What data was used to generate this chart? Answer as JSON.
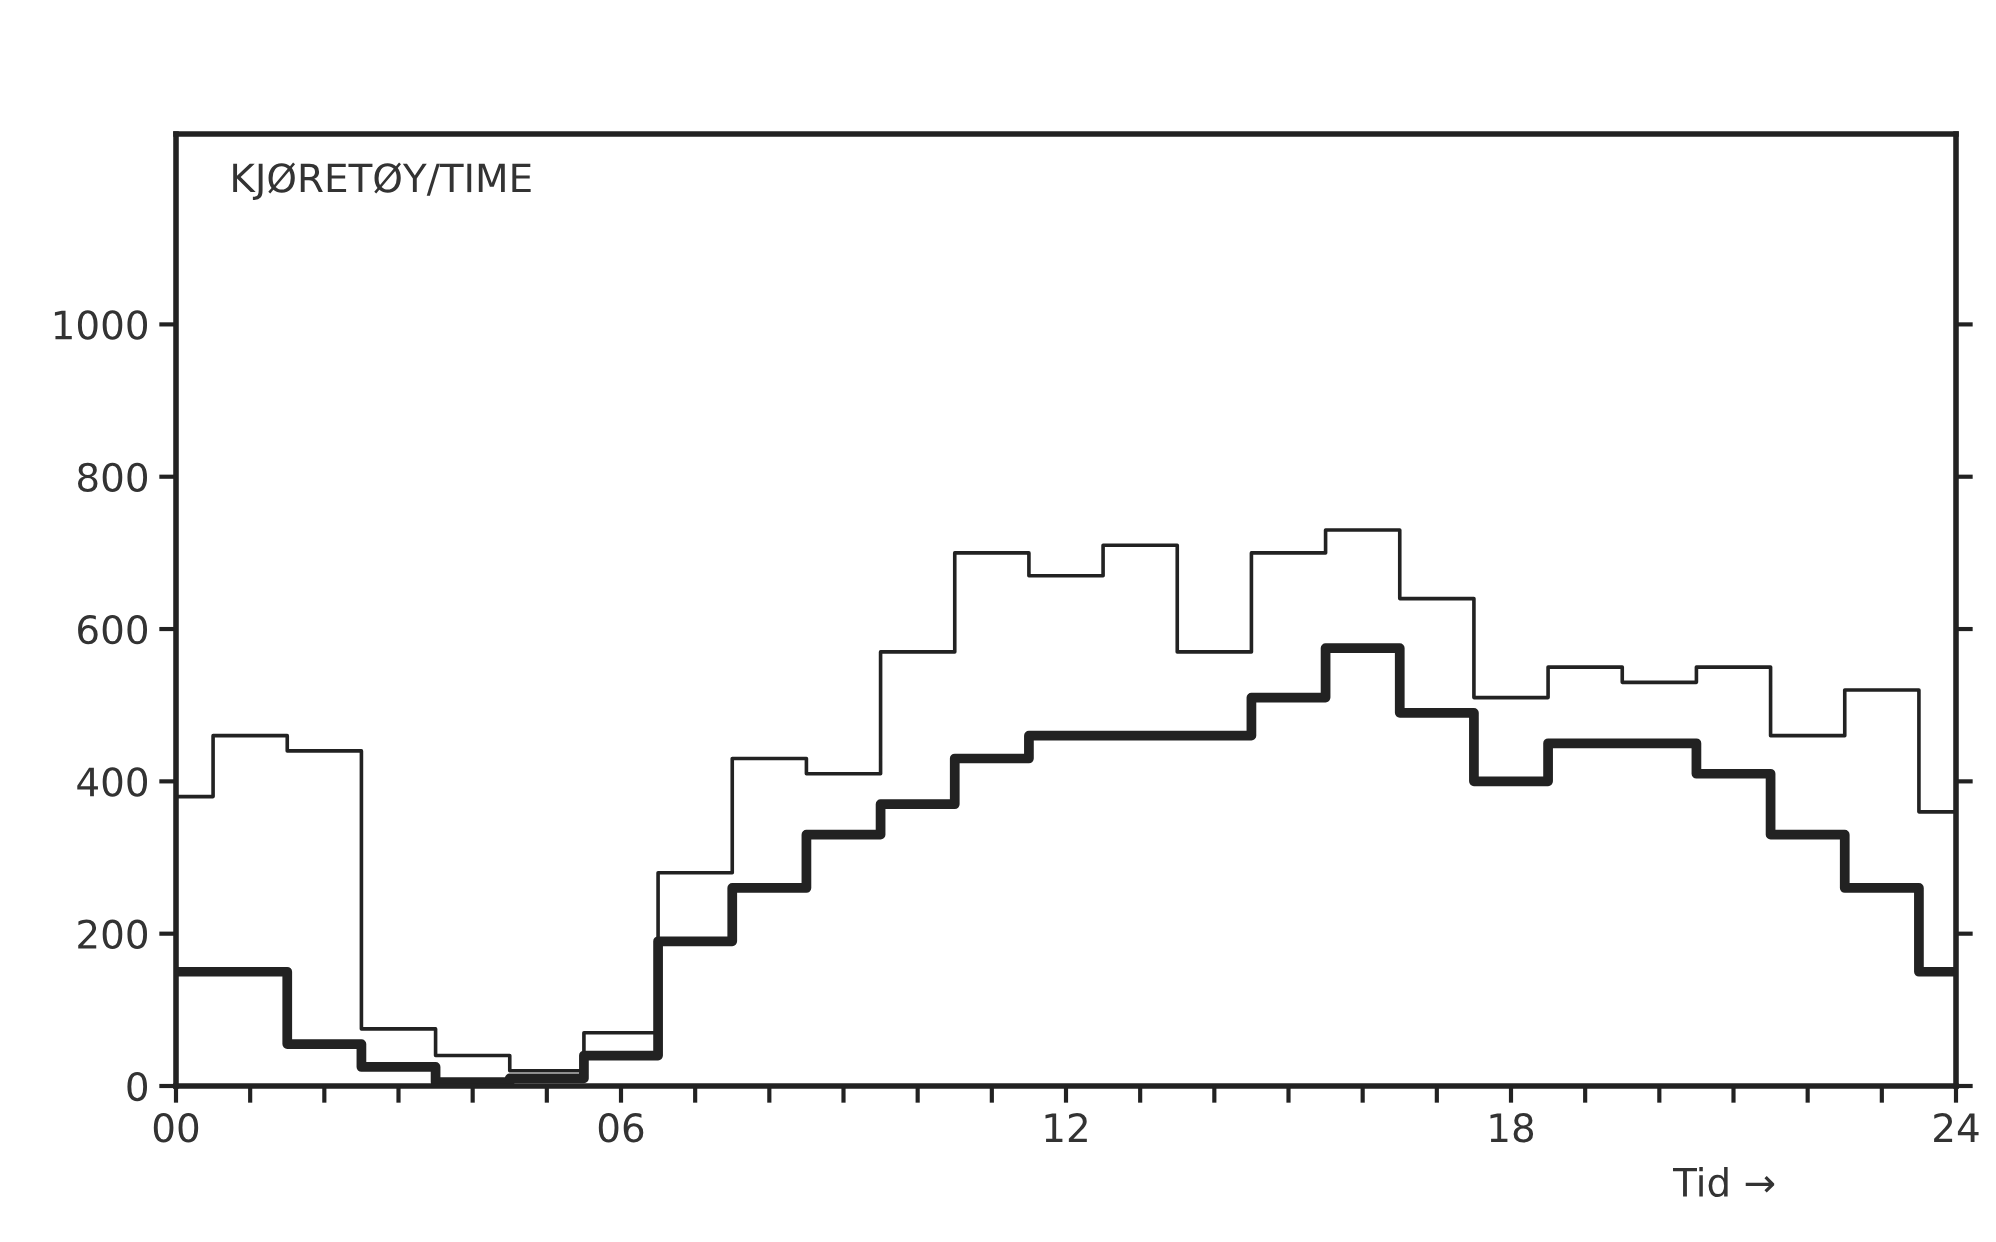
{
  "chart_data": {
    "type": "step",
    "ylabel": "KJØRETØY/TIME",
    "xlabel": "Tid →",
    "x": [
      0,
      1,
      2,
      3,
      4,
      5,
      6,
      7,
      8,
      9,
      10,
      11,
      12,
      13,
      14,
      15,
      16,
      17,
      18,
      19,
      20,
      21,
      22,
      23,
      24
    ],
    "series": [
      {
        "color": "#222222",
        "values": [
          380,
          460,
          440,
          75,
          40,
          20,
          70,
          280,
          430,
          410,
          570,
          700,
          670,
          710,
          570,
          700,
          730,
          640,
          510,
          550,
          530,
          550,
          460,
          520,
          360
        ]
      },
      {
        "color": "#222222",
        "values": [
          150,
          150,
          55,
          25,
          5,
          10,
          40,
          190,
          260,
          330,
          370,
          430,
          460,
          460,
          460,
          510,
          575,
          490,
          400,
          450,
          450,
          410,
          330,
          260,
          150
        ]
      }
    ],
    "xlim": [
      0,
      24
    ],
    "ylim": [
      0,
      1250
    ],
    "xticks": [
      {
        "value": 0,
        "label": "00"
      },
      {
        "value": 1,
        "label": null
      },
      {
        "value": 2,
        "label": null
      },
      {
        "value": 3,
        "label": null
      },
      {
        "value": 4,
        "label": null
      },
      {
        "value": 5,
        "label": null
      },
      {
        "value": 6,
        "label": "06"
      },
      {
        "value": 7,
        "label": null
      },
      {
        "value": 8,
        "label": null
      },
      {
        "value": 9,
        "label": null
      },
      {
        "value": 10,
        "label": null
      },
      {
        "value": 11,
        "label": null
      },
      {
        "value": 12,
        "label": "12"
      },
      {
        "value": 13,
        "label": null
      },
      {
        "value": 14,
        "label": null
      },
      {
        "value": 15,
        "label": null
      },
      {
        "value": 16,
        "label": null
      },
      {
        "value": 17,
        "label": null
      },
      {
        "value": 18,
        "label": "18"
      },
      {
        "value": 19,
        "label": null
      },
      {
        "value": 20,
        "label": null
      },
      {
        "value": 21,
        "label": null
      },
      {
        "value": 22,
        "label": null
      },
      {
        "value": 23,
        "label": null
      },
      {
        "value": 24,
        "label": "24"
      }
    ],
    "yticks": [
      0,
      200,
      400,
      600,
      800,
      1000
    ],
    "grid": false,
    "legend": false
  }
}
